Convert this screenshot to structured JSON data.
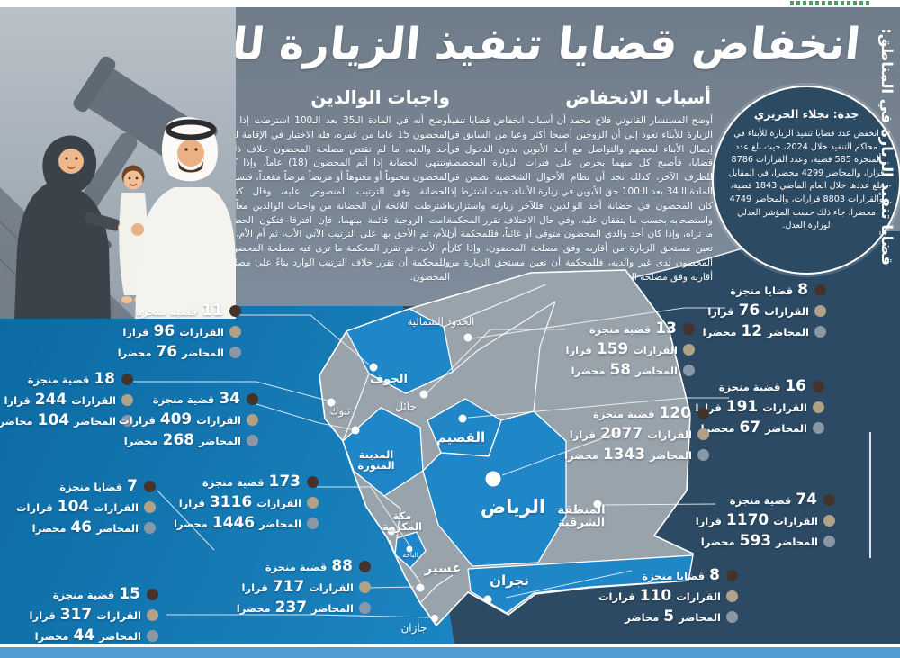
{
  "title": "انخفاض قضايا تنفيذ الزيارة للأبناء",
  "reporter_badge": {
    "byline": "جدة: نجلاء الحريري",
    "body": "انخفض عدد قضايا تنفيذ الزيارة للأبناء في محاكم التنفيذ خلال 2024، حيث بلغ عدد المنجزة 585 قضية، وعدد القرارات 8786 قرارا، والمحاضر 4299 محضرا، في المقابل بلغ عددها خلال العام الماضي 1843 قضية، والقرارات 8803 قرارات، والمحاضر 4749 محضرا، جاء ذلك حسب المؤشر العدلي لوزارة العدل."
  },
  "articles": {
    "reasons": {
      "heading": "أسباب الانخفاض",
      "body": "أوضح المستشار القانوني فلاح محمد أن أسباب انخفاض قضايا تنفيذ الزيارة للأبناء تعود إلى أن الزوجين أصبحا أكثر وعيا من السابق في إيصال الأبناء لبعضهم والتواصل مع أحد الأبوين بدون الدخول في قضايا، فأصبح كل منهما يحرص على فترات الزيارة المخصصة للطرف الآخر، كذلك نجد أن نظام الأحوال الشخصية تضمن في المادة الـ34 بعد الـ100 حق الأبوين في زيارة الأبناء، حيث اشترط إذا كان المحضون في حضانة أحد الوالدين، فللآخر زيارته واستزارته واستصحابه بحسب ما يتفقان عليه، وفي حال الاختلاف تقرر المحكمة ما تراه، وإذا كان أحد والدي المحضون متوفى أو غائباً، فللمحكمة أن تعين مستحق الزيارة من أقاربه وفق مصلحة المحضون، وإذا كان المحضون لدى غير والديه، فللمحكمة أن تعين مستحق الزيارة من أقاربه وفق مصلحة المحضون."
    },
    "duties": {
      "heading": "واجبات الوالدين",
      "body": "أوضح أنه في المادة الـ35 بعد الـ100 اشترطت إذا أتم المحضون 15 عاما من عمره، فله الاختيار في الإقامة لدى أحد والديه، ما لم تقتض مصلحة المحضون خلاف ذلك، وتنتهي الحضانة إذا أتم المحضون (18) عاماً. وإذا كان المحضون مجنوناً أو معتوهاً أو مريضاً مرضاً مقعداً، فتستمر الحضانة وفق الترتيب المنصوص عليه، وقال كذلك اشترطت اللائحة أن الحضانة من واجبات الوالدين معاً ما دامت الزوجية قائمة بينهما، فإن افترقا فتكون الحضانة للأم، ثم الأحق بها على الترتيب الآتي الأب، ثم أم الأم، ثم أم الأب، ثم تقرر المحكمة ما ترى فيه مصلحة المحضون، وللمحكمة أن تقرر خلاف الترتيب الوارد بناءً على مصلحة المحضون."
    }
  },
  "map_section": {
    "sidebar_title": "قضايا تنفيذ الزيارة في المناطق:",
    "regions": [
      {
        "id": "northern-borders",
        "name": "الحدود الشمالية",
        "highlight": false
      },
      {
        "id": "jouf",
        "name": "الجوف",
        "highlight": true
      },
      {
        "id": "tabuk",
        "name": "تبوك",
        "highlight": false
      },
      {
        "id": "hail",
        "name": "حائل",
        "highlight": false
      },
      {
        "id": "qassim",
        "name": "القصيم",
        "highlight": true
      },
      {
        "id": "medina",
        "name": "المدينة المنورة",
        "highlight": true
      },
      {
        "id": "riyadh",
        "name": "الرياض",
        "highlight": true
      },
      {
        "id": "eastern",
        "name": "المنطقة الشرقية",
        "highlight": false
      },
      {
        "id": "makkah",
        "name": "مكة المكرمة",
        "highlight": false
      },
      {
        "id": "baha",
        "name": "الباحة",
        "highlight": true
      },
      {
        "id": "asir",
        "name": "عسير",
        "highlight": false
      },
      {
        "id": "najran",
        "name": "نجران",
        "highlight": true
      },
      {
        "id": "jazan",
        "name": "جازان",
        "highlight": false
      }
    ],
    "stat_blocks": [
      {
        "id": "L1",
        "cases": {
          "num": "11",
          "label": "قضية منجزة"
        },
        "decisions": {
          "prefix": "القرارات",
          "num": "96",
          "suffix": "قرارا"
        },
        "minutes": {
          "prefix": "المحاضر",
          "num": "76",
          "suffix": "محضرا"
        }
      },
      {
        "id": "L2",
        "cases": {
          "num": "18",
          "label": "قضية منجزة"
        },
        "decisions": {
          "prefix": "القرارات",
          "num": "244",
          "suffix": "قرارا"
        },
        "minutes": {
          "prefix": "المحاضر",
          "num": "104",
          "suffix": "محاضر"
        }
      },
      {
        "id": "L3",
        "cases": {
          "num": "34",
          "label": "قضية منجزة"
        },
        "decisions": {
          "prefix": "القرارات",
          "num": "409",
          "suffix": "قرارات"
        },
        "minutes": {
          "prefix": "المحاضر",
          "num": "268",
          "suffix": "محضرا"
        }
      },
      {
        "id": "L4",
        "cases": {
          "num": "7",
          "label": "قضايا منجزة"
        },
        "decisions": {
          "prefix": "القرارات",
          "num": "104",
          "suffix": "قرارات"
        },
        "minutes": {
          "prefix": "المحاضر",
          "num": "46",
          "suffix": "محضرا"
        }
      },
      {
        "id": "L5",
        "cases": {
          "num": "173",
          "label": "قضية منجزة"
        },
        "decisions": {
          "prefix": "القرارات",
          "num": "3116",
          "suffix": "قرارا"
        },
        "minutes": {
          "prefix": "المحاضر",
          "num": "1446",
          "suffix": "محضرا"
        }
      },
      {
        "id": "L6",
        "cases": {
          "num": "88",
          "label": "قضية منجزة"
        },
        "decisions": {
          "prefix": "القرارات",
          "num": "717",
          "suffix": "قرارا"
        },
        "minutes": {
          "prefix": "المحاضر",
          "num": "237",
          "suffix": "محضرا"
        }
      },
      {
        "id": "L7",
        "cases": {
          "num": "15",
          "label": "قضية منجزة"
        },
        "decisions": {
          "prefix": "القرارات",
          "num": "317",
          "suffix": "قرارا"
        },
        "minutes": {
          "prefix": "المحاضر",
          "num": "44",
          "suffix": "محضرا"
        }
      },
      {
        "id": "R1",
        "cases": {
          "num": "8",
          "label": "قضايا منجزة"
        },
        "decisions": {
          "prefix": "القرارات",
          "num": "76",
          "suffix": "قرارا"
        },
        "minutes": {
          "prefix": "المحاضر",
          "num": "12",
          "suffix": "محضرا"
        }
      },
      {
        "id": "R2",
        "cases": {
          "num": "13",
          "label": "قضية منجزة"
        },
        "decisions": {
          "prefix": "القرارات",
          "num": "159",
          "suffix": "قرارا"
        },
        "minutes": {
          "prefix": "المحاضر",
          "num": "58",
          "suffix": "محضرا"
        }
      },
      {
        "id": "R3",
        "cases": {
          "num": "16",
          "label": "قضية منجزة"
        },
        "decisions": {
          "prefix": "القرارات",
          "num": "191",
          "suffix": "قرارا"
        },
        "minutes": {
          "prefix": "المحاضر",
          "num": "67",
          "suffix": "محضرا"
        }
      },
      {
        "id": "R4",
        "cases": {
          "num": "120",
          "label": "قضية منجزة"
        },
        "decisions": {
          "prefix": "القرارات",
          "num": "2077",
          "suffix": "قرارا"
        },
        "minutes": {
          "prefix": "المحاضر",
          "num": "1343",
          "suffix": "محضرا"
        }
      },
      {
        "id": "R5",
        "cases": {
          "num": "74",
          "label": "قضية منجزة"
        },
        "decisions": {
          "prefix": "القرارات",
          "num": "1170",
          "suffix": "قرارا"
        },
        "minutes": {
          "prefix": "المحاضر",
          "num": "593",
          "suffix": "محضرا"
        }
      },
      {
        "id": "R6",
        "cases": {
          "num": "8",
          "label": "قضايا منجزة"
        },
        "decisions": {
          "prefix": "القرارات",
          "num": "110",
          "suffix": "قرارات"
        },
        "minutes": {
          "prefix": "المحاضر",
          "num": "5",
          "suffix": "محاضر"
        }
      }
    ]
  },
  "colors": {
    "band_gray_blue": "#76828f",
    "navy": "#2d4a63",
    "bright_blue": "#1779b4",
    "region_blue": "#1f86c7",
    "region_gray": "#99a3ac",
    "footer_strip": "#4e9cd1",
    "bullet_cases": "#44332a",
    "bullet_decisions": "#b1a187",
    "bullet_minutes": "#8a98a6"
  }
}
